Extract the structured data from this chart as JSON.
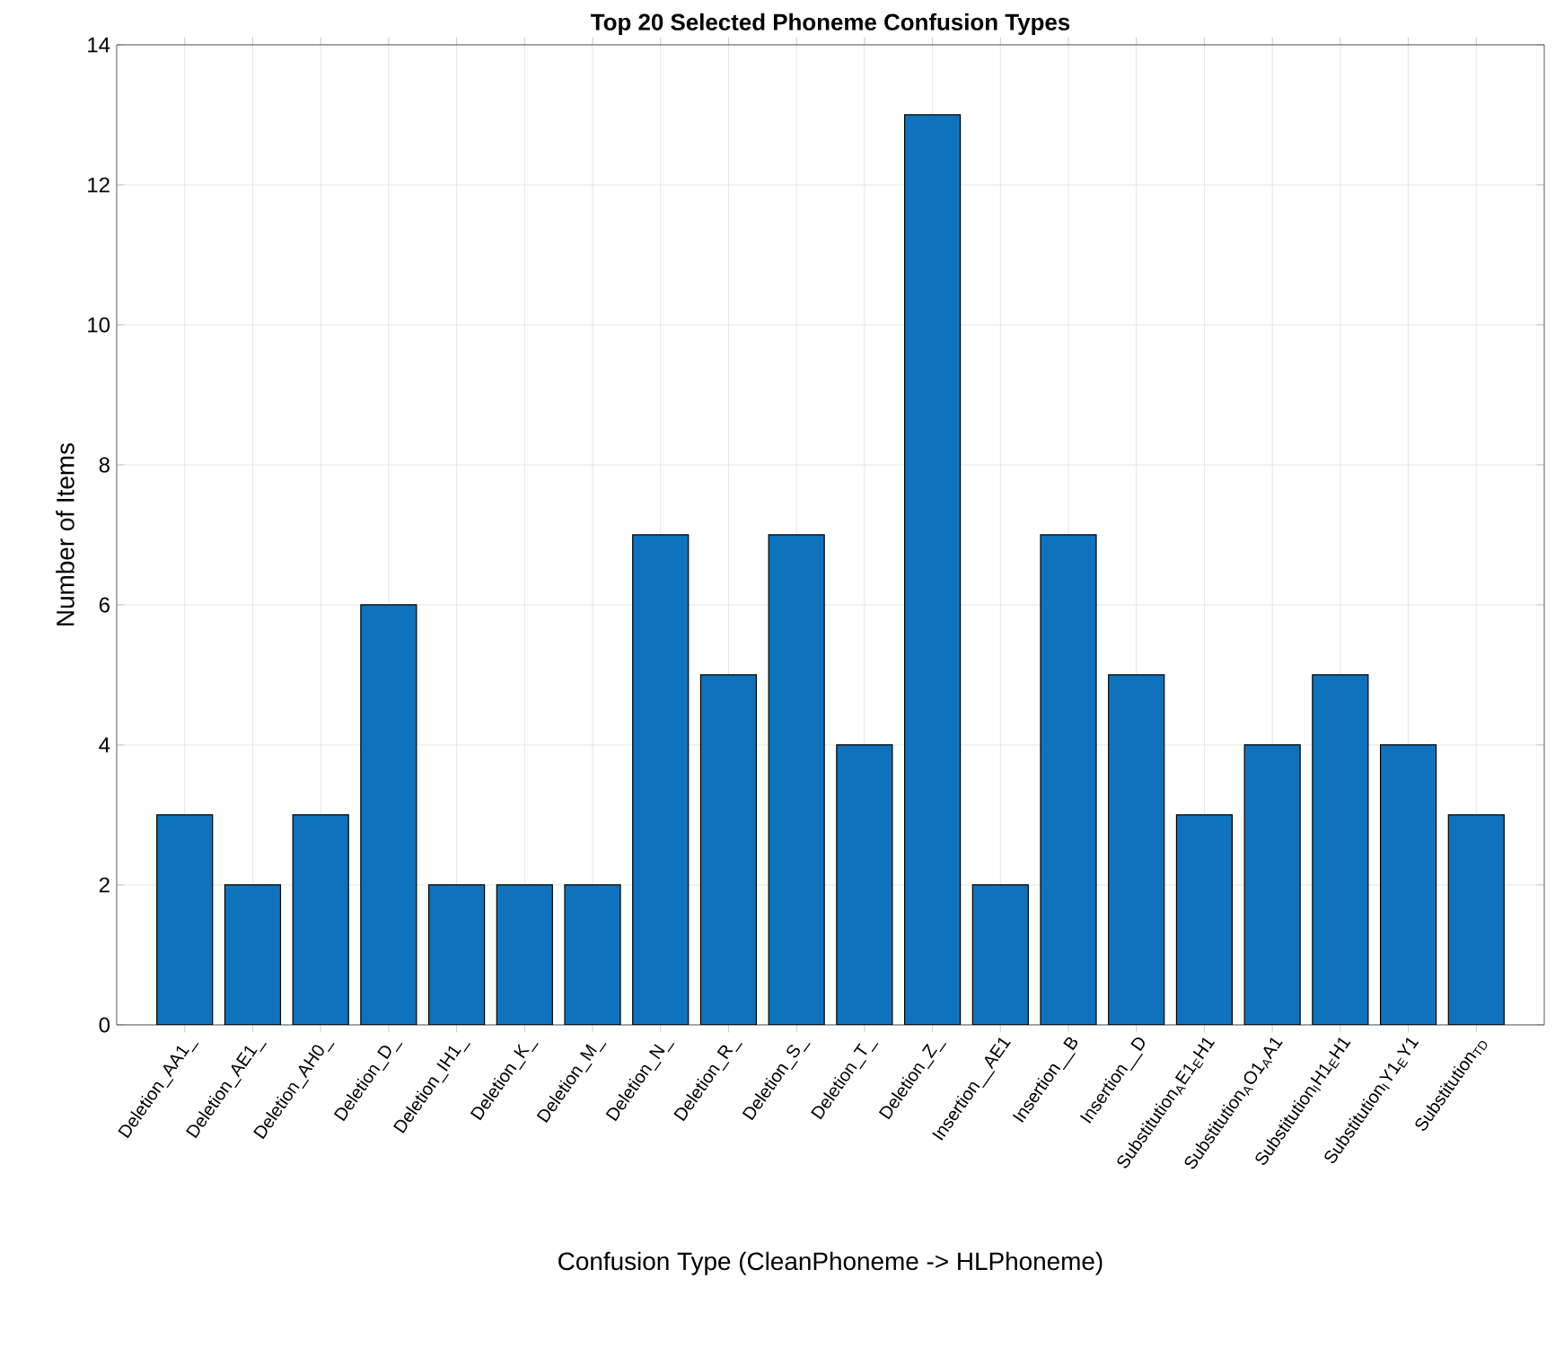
{
  "chart_data": {
    "type": "bar",
    "title": "Top 20 Selected Phoneme Confusion Types",
    "xlabel": "Confusion Type (CleanPhoneme -> HLPhoneme)",
    "ylabel": "Number of Items",
    "categories": [
      "Deletion_AA1_",
      "Deletion_AE1_",
      "Deletion_AH0_",
      "Deletion_D_",
      "Deletion_IH1_",
      "Deletion_K_",
      "Deletion_M_",
      "Deletion_N_",
      "Deletion_R_",
      "Deletion_S_",
      "Deletion_T_",
      "Deletion_Z_",
      "Insertion__AE1",
      "Insertion__B",
      "Insertion__D",
      "Substitution$_{A}$E1$_{E}$H1",
      "Substitution$_{A}$O1$_{A}$A1",
      "Substitution$_{I}$H1$_{E}$H1",
      "Substitution$_{I}$Y1$_{E}$Y1",
      "Substitution$_{TD}$"
    ],
    "values": [
      3,
      2,
      3,
      6,
      2,
      2,
      2,
      7,
      5,
      7,
      4,
      13,
      2,
      7,
      5,
      3,
      4,
      5,
      4,
      3
    ],
    "color": "#0f72bd",
    "ylim": [
      0,
      14
    ],
    "yticks": [
      0,
      2,
      4,
      6,
      8,
      10,
      12,
      14
    ],
    "grid": true
  }
}
